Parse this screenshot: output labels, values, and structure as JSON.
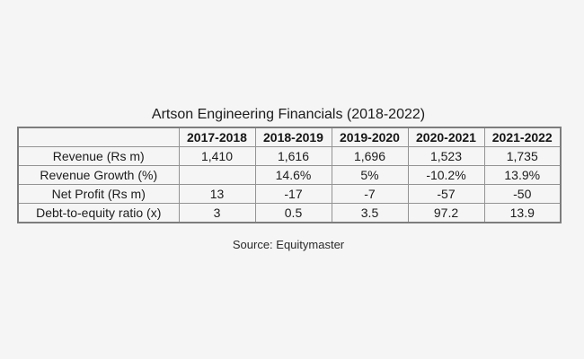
{
  "page": {
    "background_color": "#f5f5f5",
    "border_color_outer": "#7d7d7d",
    "border_color_inner": "#939393",
    "text_color": "#1b1b1b"
  },
  "title": "Artson Engineering Financials (2018-2022)",
  "source": "Source: Equitymaster",
  "chart_data": {
    "type": "table",
    "title": "Artson Engineering Financials (2018-2022)",
    "columns": [
      "",
      "2017-2018",
      "2018-2019",
      "2019-2020",
      "2020-2021",
      "2021-2022"
    ],
    "rows": [
      {
        "label": "Revenue (Rs m)",
        "values": [
          "1,410",
          "1,616",
          "1,696",
          "1,523",
          "1,735"
        ]
      },
      {
        "label": "Revenue Growth (%)",
        "values": [
          "",
          "14.6%",
          "5%",
          "-10.2%",
          "13.9%"
        ]
      },
      {
        "label": "Net Profit (Rs m)",
        "values": [
          "13",
          "-17",
          "-7",
          "-57",
          "-50"
        ]
      },
      {
        "label": "Debt-to-equity ratio (x)",
        "values": [
          "3",
          "0.5",
          "3.5",
          "97.2",
          "13.9"
        ]
      }
    ],
    "source": "Source: Equitymaster",
    "layout": {
      "header_bold": true,
      "cell_alignment": "center",
      "grid": true
    }
  }
}
